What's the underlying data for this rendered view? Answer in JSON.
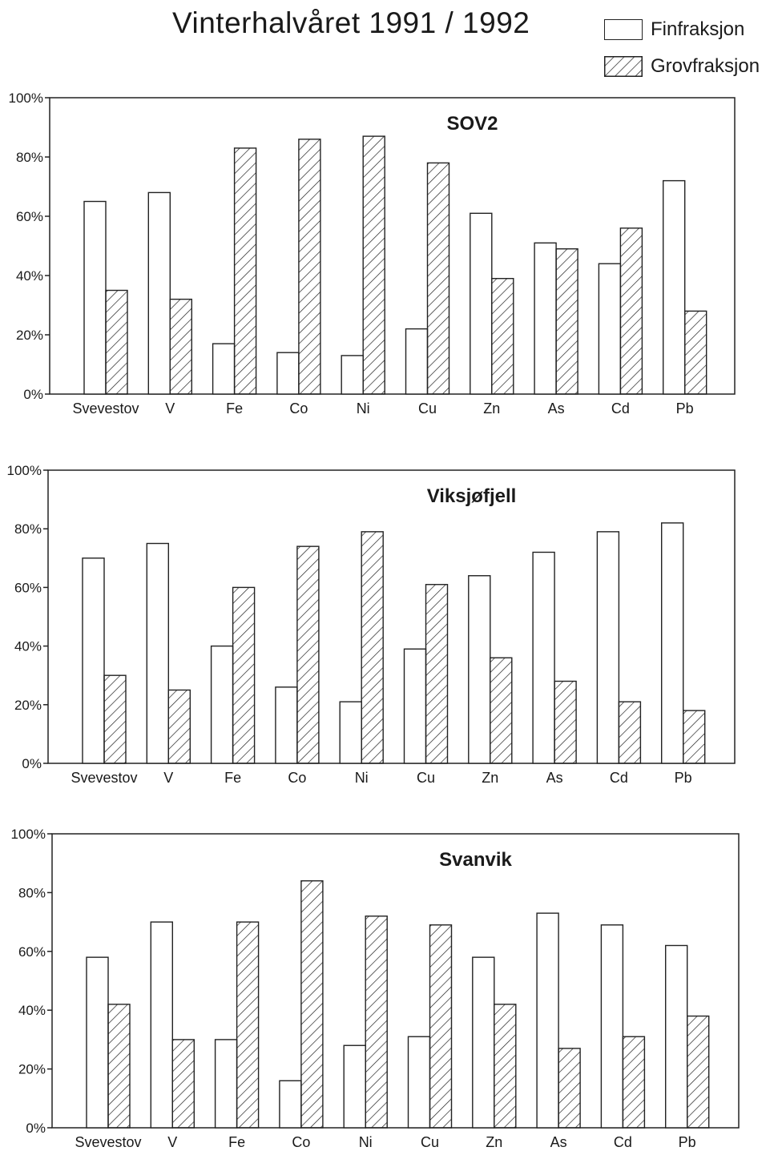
{
  "title": "Vinterhalvåret 1991 / 1992",
  "legend": [
    {
      "label": "Finfraksjon",
      "pattern": "none"
    },
    {
      "label": "Grovfraksjon",
      "pattern": "hatched"
    }
  ],
  "colors": {
    "ink": "#1a1a1a",
    "background": "#ffffff"
  },
  "chart_data": [
    {
      "type": "bar",
      "title": "SOV2",
      "categories": [
        "Svevestov",
        "V",
        "Fe",
        "Co",
        "Ni",
        "Cu",
        "Zn",
        "As",
        "Cd",
        "Pb"
      ],
      "series": [
        {
          "name": "Finfraksjon",
          "values": [
            65,
            68,
            17,
            14,
            13,
            22,
            61,
            51,
            44,
            72
          ]
        },
        {
          "name": "Grovfraksjon",
          "values": [
            35,
            32,
            83,
            86,
            87,
            78,
            39,
            49,
            56,
            28
          ]
        }
      ],
      "yticks": [
        "0%",
        "20%",
        "40%",
        "60%",
        "80%",
        "100%"
      ],
      "ylim": [
        0,
        100
      ]
    },
    {
      "type": "bar",
      "title": "Viksjøfjell",
      "categories": [
        "Svevestov",
        "V",
        "Fe",
        "Co",
        "Ni",
        "Cu",
        "Zn",
        "As",
        "Cd",
        "Pb"
      ],
      "series": [
        {
          "name": "Finfraksjon",
          "values": [
            70,
            75,
            40,
            26,
            21,
            39,
            64,
            72,
            79,
            82
          ]
        },
        {
          "name": "Grovfraksjon",
          "values": [
            30,
            25,
            60,
            74,
            79,
            61,
            36,
            28,
            21,
            18
          ]
        }
      ],
      "yticks": [
        "0%",
        "20%",
        "40%",
        "60%",
        "80%",
        "100%"
      ],
      "ylim": [
        0,
        100
      ]
    },
    {
      "type": "bar",
      "title": "Svanvik",
      "categories": [
        "Svevestov",
        "V",
        "Fe",
        "Co",
        "Ni",
        "Cu",
        "Zn",
        "As",
        "Cd",
        "Pb"
      ],
      "series": [
        {
          "name": "Finfraksjon",
          "values": [
            58,
            70,
            30,
            16,
            28,
            31,
            58,
            73,
            69,
            62
          ]
        },
        {
          "name": "Grovfraksjon",
          "values": [
            42,
            30,
            70,
            84,
            72,
            69,
            42,
            27,
            31,
            38
          ]
        }
      ],
      "yticks": [
        "0%",
        "20%",
        "40%",
        "60%",
        "80%",
        "100%"
      ],
      "ylim": [
        0,
        100
      ]
    }
  ]
}
